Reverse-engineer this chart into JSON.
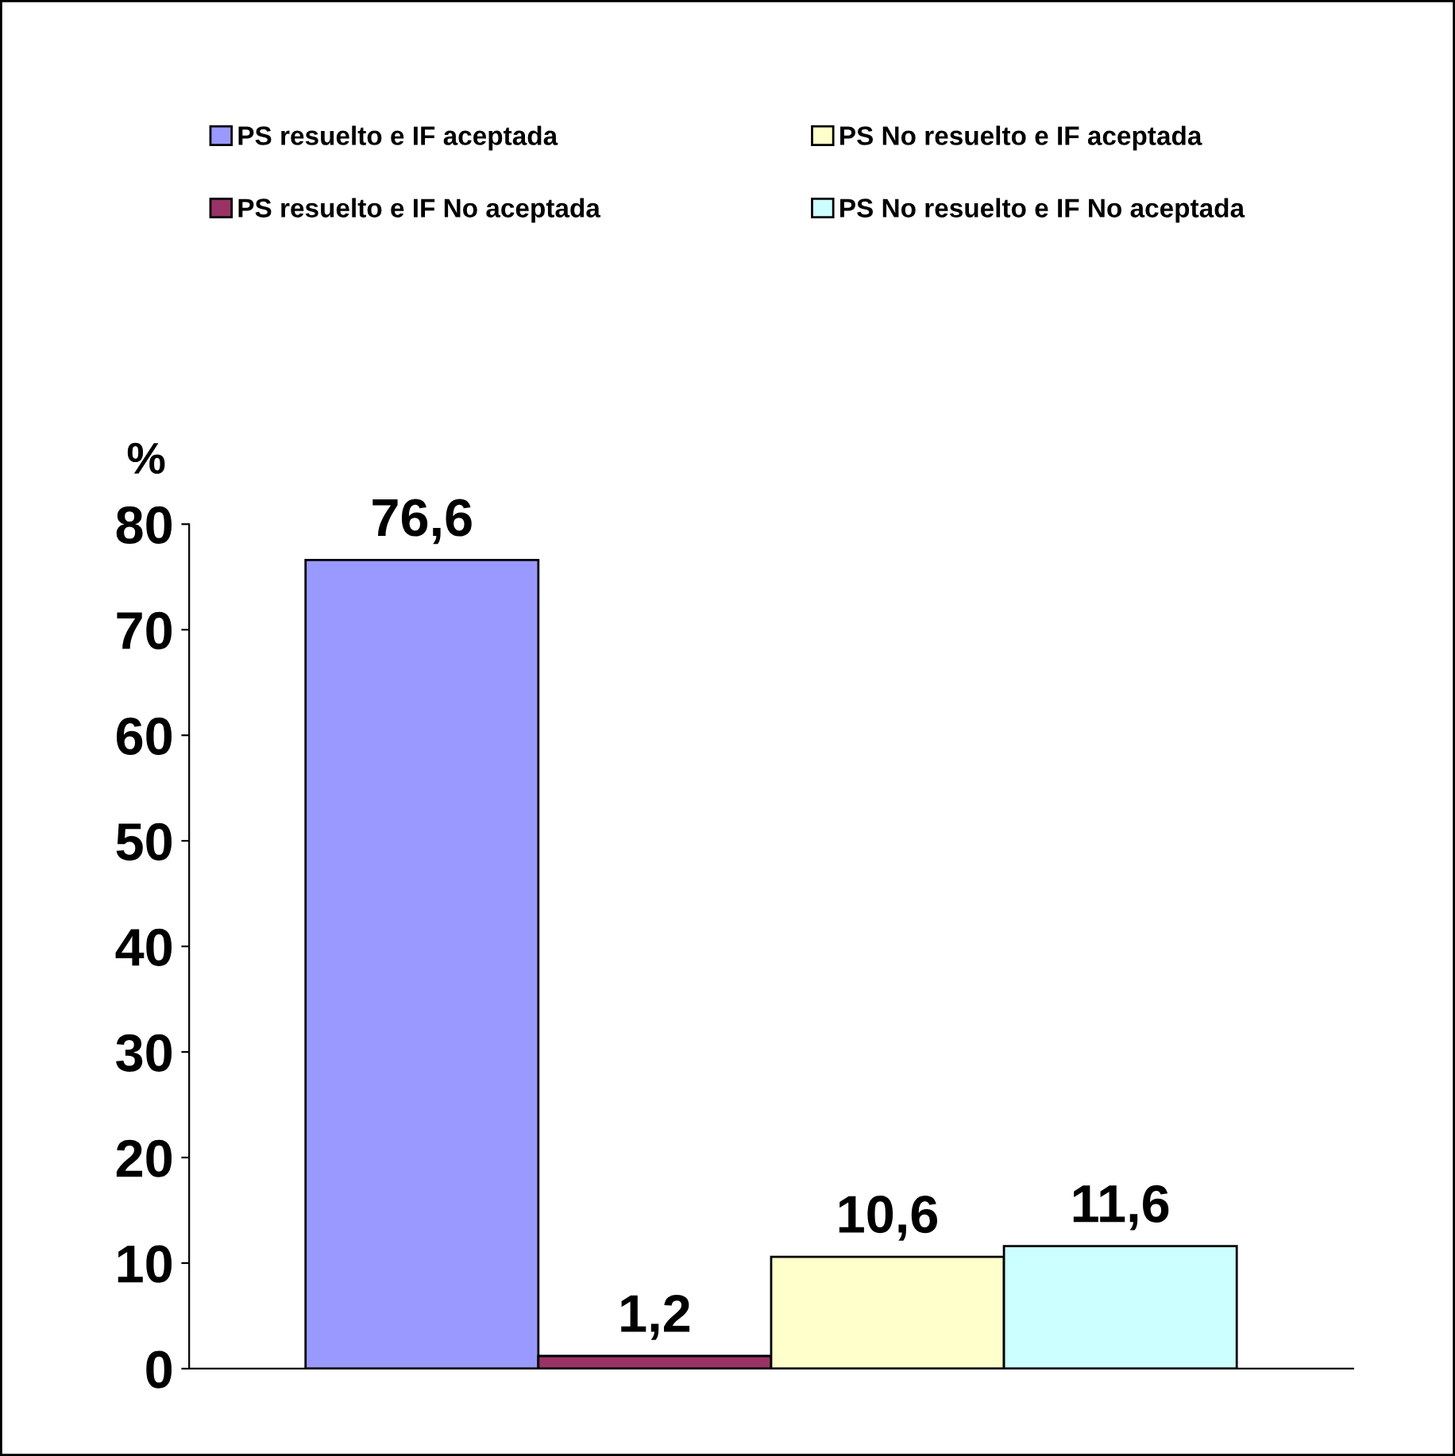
{
  "chart_data": {
    "type": "bar",
    "ylabel": "%",
    "categories": [
      null
    ],
    "series": [
      {
        "name": "PS resuelto e IF aceptada",
        "color": "#9999ff",
        "values": [
          76.6
        ],
        "value_labels": [
          "76,6"
        ]
      },
      {
        "name": "PS resuelto e IF No aceptada",
        "color": "#993366",
        "values": [
          1.2
        ],
        "value_labels": [
          "1,2"
        ]
      },
      {
        "name": "PS No resuelto e IF aceptada",
        "color": "#ffffcc",
        "values": [
          10.6
        ],
        "value_labels": [
          "10,6"
        ]
      },
      {
        "name": "PS No resuelto e IF No aceptada",
        "color": "#ccffff",
        "values": [
          11.6
        ],
        "value_labels": [
          "11,6"
        ]
      }
    ],
    "ylim": [
      0,
      80
    ],
    "yticks": [
      0,
      10,
      20,
      30,
      40,
      50,
      60,
      70,
      80
    ],
    "grid": false,
    "legend": "top"
  }
}
